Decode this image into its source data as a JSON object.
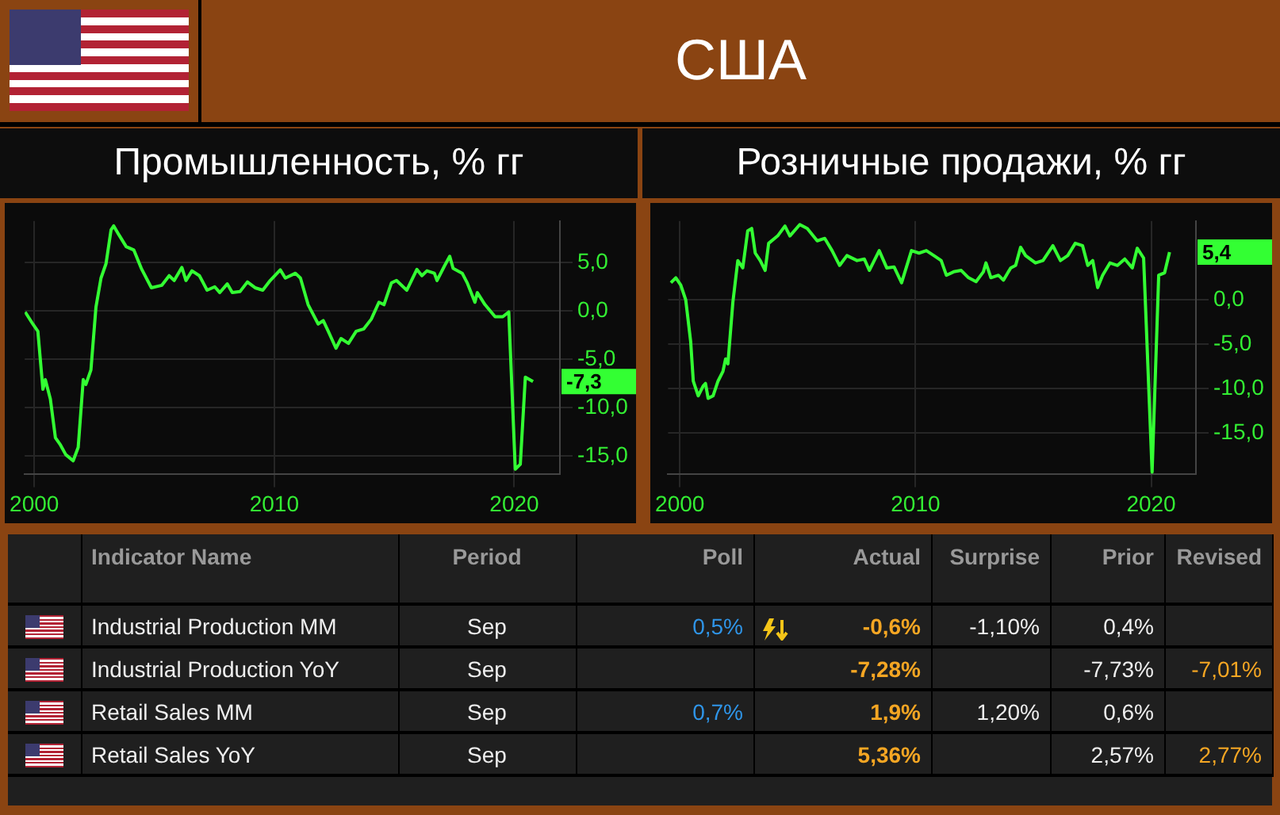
{
  "chart_data": [
    {
      "type": "other",
      "title": "США"
    },
    {
      "type": "line",
      "title": "Промышленность, % гг",
      "xlim": [
        1999.6,
        2021.9
      ],
      "xticks": [
        2000,
        2010,
        2020
      ],
      "ylim": [
        -16.9,
        9.3
      ],
      "yticks": [
        {
          "value": 5,
          "label": "5,0"
        },
        {
          "value": 0,
          "label": "0,0"
        },
        {
          "value": -5,
          "label": "-5,0"
        },
        {
          "value": -10,
          "label": "-10,0"
        },
        {
          "value": -15,
          "label": "-15,0"
        }
      ],
      "grid": true,
      "marker": "none",
      "series": [
        {
          "color": "#33ff33",
          "x": [
            1999.62,
            1999.94,
            2000.15,
            2000.36,
            2000.46,
            2000.67,
            2000.88,
            2001.09,
            2001.31,
            2001.62,
            2001.83,
            2002.04,
            2002.15,
            2002.36,
            2002.57,
            2002.78,
            2002.99,
            2003.2,
            2003.31,
            2003.52,
            2003.83,
            2004.15,
            2004.46,
            2004.88,
            2005.31,
            2005.62,
            2005.83,
            2006.15,
            2006.32,
            2006.57,
            2006.88,
            2007.2,
            2007.52,
            2007.73,
            2008.04,
            2008.25,
            2008.57,
            2008.88,
            2009.2,
            2009.52,
            2009.83,
            2010.25,
            2010.46,
            2010.88,
            2011.09,
            2011.41,
            2011.83,
            2012.04,
            2012.25,
            2012.57,
            2012.78,
            2013.09,
            2013.41,
            2013.73,
            2014.04,
            2014.36,
            2014.57,
            2014.88,
            2015.09,
            2015.52,
            2015.94,
            2016.15,
            2016.36,
            2016.67,
            2016.78,
            2017.09,
            2017.31,
            2017.45,
            2017.83,
            2018.04,
            2018.36,
            2018.46,
            2018.78,
            2019.2,
            2019.52,
            2019.77,
            2020.04,
            2020.25,
            2020.46,
            2020.78
          ],
          "values": [
            -0.1,
            -1.35,
            -2.1,
            -8.1,
            -7.1,
            -9.1,
            -13.1,
            -13.85,
            -14.85,
            -15.5,
            -14.1,
            -7.1,
            -7.6,
            -6.1,
            0.4,
            3.4,
            4.9,
            8.4,
            8.8,
            7.9,
            6.65,
            6.3,
            4.4,
            2.4,
            2.65,
            3.65,
            3.15,
            4.5,
            3.15,
            4.15,
            3.65,
            2.15,
            2.5,
            1.9,
            2.8,
            1.9,
            2.0,
            3.0,
            2.4,
            2.15,
            3.15,
            4.25,
            3.4,
            3.9,
            3.4,
            0.65,
            -1.35,
            -1.0,
            -2.1,
            -3.85,
            -2.85,
            -3.35,
            -2.1,
            -1.85,
            -0.85,
            0.9,
            0.65,
            2.9,
            3.15,
            2.15,
            4.3,
            3.65,
            4.15,
            3.9,
            3.15,
            4.65,
            5.65,
            4.4,
            3.9,
            2.9,
            0.9,
            1.9,
            0.65,
            -0.6,
            -0.6,
            -0.1,
            -16.35,
            -15.85,
            -6.85,
            -7.3
          ]
        }
      ],
      "annotations": [
        "-7,3"
      ]
    },
    {
      "type": "line",
      "title": "Розничные продажи, % гг",
      "xlim": [
        1999.5,
        2021.9
      ],
      "xticks": [
        2000,
        2010,
        2020
      ],
      "ylim": [
        -19.7,
        8.9
      ],
      "yticks": [
        {
          "value": 0,
          "label": "0,0"
        },
        {
          "value": -5,
          "label": "-5,0"
        },
        {
          "value": -10,
          "label": "-10,0"
        },
        {
          "value": -15,
          "label": "-15,0"
        }
      ],
      "grid": true,
      "marker": "none",
      "series": [
        {
          "color": "#33ff33",
          "x": [
            1999.62,
            1999.83,
            2000.04,
            2000.25,
            2000.46,
            2000.57,
            2000.78,
            2000.99,
            2001.09,
            2001.2,
            2001.41,
            2001.62,
            2001.83,
            2001.94,
            2002.04,
            2002.25,
            2002.46,
            2002.67,
            2002.88,
            2003.05,
            2003.2,
            2003.41,
            2003.62,
            2003.77,
            2004.15,
            2004.46,
            2004.67,
            2005.09,
            2005.41,
            2005.83,
            2006.15,
            2006.46,
            2006.78,
            2007.09,
            2007.52,
            2007.83,
            2008.04,
            2008.46,
            2008.78,
            2009.09,
            2009.41,
            2009.83,
            2010.15,
            2010.46,
            2010.78,
            2011.09,
            2011.31,
            2011.62,
            2011.94,
            2012.25,
            2012.57,
            2012.88,
            2012.99,
            2013.2,
            2013.52,
            2013.73,
            2014.04,
            2014.25,
            2014.46,
            2014.67,
            2015.09,
            2015.41,
            2015.83,
            2016.15,
            2016.46,
            2016.78,
            2017.09,
            2017.31,
            2017.52,
            2017.73,
            2017.94,
            2018.25,
            2018.57,
            2018.88,
            2019.2,
            2019.41,
            2019.68,
            2020.04,
            2020.32,
            2020.57,
            2020.78
          ],
          "values": [
            1.94,
            2.5,
            1.67,
            0,
            -4.72,
            -9.17,
            -10.83,
            -9.72,
            -9.44,
            -11.11,
            -10.83,
            -9.17,
            -8.06,
            -6.67,
            -7.22,
            -0.28,
            4.44,
            3.61,
            7.78,
            8.06,
            5.28,
            4.44,
            3.33,
            6.39,
            7.22,
            8.33,
            7.22,
            8.5,
            8.06,
            6.67,
            6.94,
            5.56,
            3.89,
            5.0,
            4.44,
            4.61,
            3.33,
            5.56,
            3.61,
            3.72,
            1.94,
            5.56,
            5.28,
            5.56,
            5.0,
            4.44,
            2.78,
            3.17,
            3.33,
            2.5,
            2.06,
            3.17,
            4.17,
            2.5,
            2.78,
            2.22,
            3.61,
            3.89,
            5.94,
            5.0,
            4.17,
            4.44,
            6.11,
            4.44,
            5.0,
            6.39,
            6.11,
            3.89,
            4.44,
            1.39,
            2.78,
            4.17,
            3.89,
            4.61,
            3.61,
            5.83,
            4.72,
            -19.44,
            2.78,
            3.06,
            5.4
          ]
        }
      ],
      "annotations": [
        "5,4"
      ]
    },
    {
      "type": "other",
      "categories": [
        "Indicator Name",
        "Period",
        "Poll",
        "Actual",
        "Surprise",
        "Prior",
        "Revised"
      ],
      "annotations": [
        "Industrial Production MM",
        "Sep",
        "0,5%",
        "-0,6%",
        "-1,10%",
        "0,4%",
        null,
        "Industrial Production YoY",
        "Sep",
        null,
        "-7,28%",
        null,
        "-7,73%",
        "-7,01%",
        "Retail Sales MM",
        "Sep",
        "0,7%",
        "1,9%",
        "1,20%",
        "0,6%",
        null,
        "Retail Sales YoY",
        "Sep",
        null,
        "5,36%",
        null,
        "2,57%",
        "2,77%"
      ]
    }
  ]
}
